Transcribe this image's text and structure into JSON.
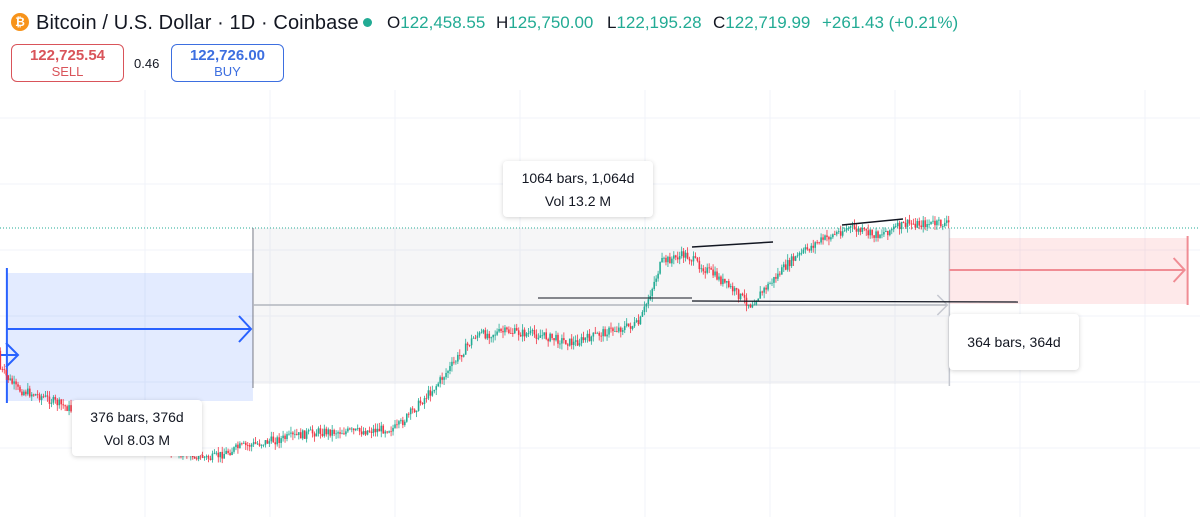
{
  "header": {
    "symbol_icon": "bitcoin-icon",
    "symbol_icon_glyph": "₿",
    "title": "Bitcoin / U.S. Dollar · 1D · Coinbase",
    "ohlc": {
      "open_label": "O",
      "open": "122,458.55",
      "high_label": "H",
      "high": "125,750.00",
      "low_label": "L",
      "low": "122,195.28",
      "close_label": "C",
      "close": "122,719.99",
      "change": "+261.43 (+0.21%)"
    }
  },
  "trade": {
    "sell_price": "122,725.54",
    "sell_label": "SELL",
    "spread": "0.46",
    "buy_price": "122,726.00",
    "buy_label": "BUY"
  },
  "measurements": [
    {
      "bars_text": "376 bars, 376d",
      "vol_text": "Vol 8.03 M",
      "color": "#2962ff",
      "bars": 376
    },
    {
      "bars_text": "1064 bars, 1,064d",
      "vol_text": "Vol 13.2 M",
      "color": "#787b86",
      "bars": 1064
    },
    {
      "bars_text": "364 bars, 364d",
      "color": "#f7525f",
      "bars": 364
    }
  ],
  "colors": {
    "up": "#22ab94",
    "down": "#f23645",
    "grid": "#f0f3fa",
    "last_price_line": "#22ab94"
  },
  "chart_data": {
    "type": "line",
    "xlabel": "",
    "ylabel": "",
    "x": [
      0,
      40,
      80,
      120,
      160,
      200,
      240,
      280,
      320,
      376,
      420,
      480,
      540,
      600,
      660,
      720,
      780,
      830,
      880,
      930,
      980,
      1030,
      1064,
      1100,
      1150,
      1200,
      1260,
      1300,
      1350,
      1390,
      1440
    ],
    "series": [
      {
        "values": [
          0.72,
          0.7,
          0.62,
          0.6,
          0.57,
          0.5,
          0.49,
          0.48,
          0.46,
          0.44,
          0.47,
          0.49,
          0.51,
          0.51,
          0.52,
          0.63,
          0.76,
          0.77,
          0.76,
          0.74,
          0.77,
          0.79,
          0.95,
          0.97,
          0.91,
          0.84,
          0.95,
          1.0,
          1.04,
          1.02,
          1.05
        ]
      }
    ],
    "grid": true
  }
}
